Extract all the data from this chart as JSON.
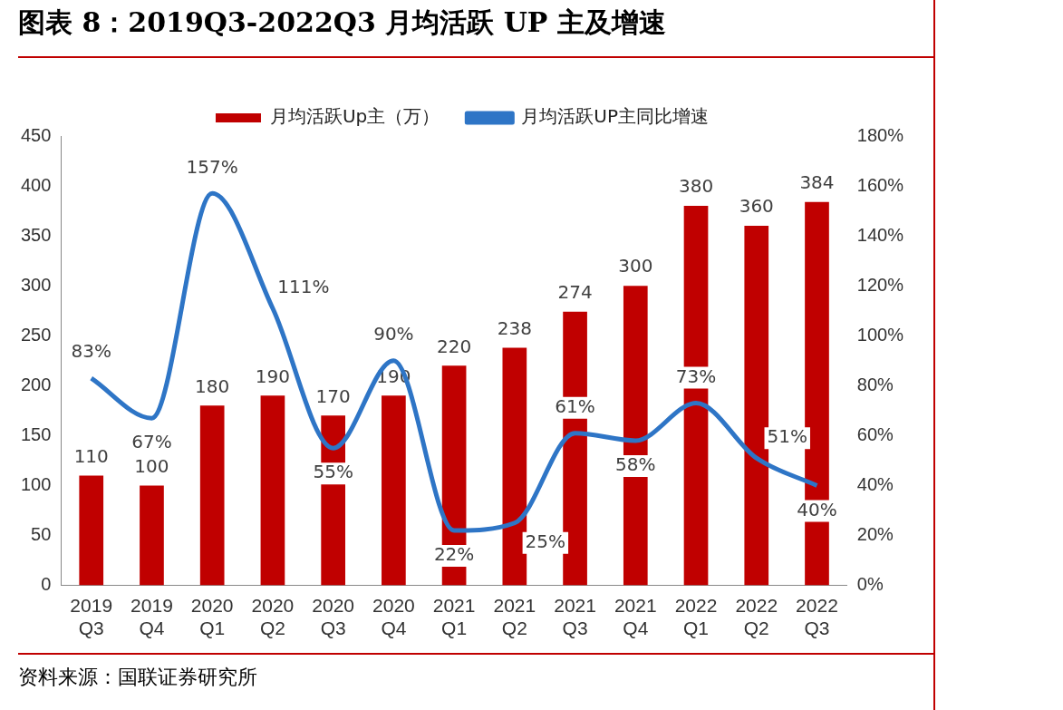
{
  "chart_data": {
    "type": "bar",
    "title": "图表 8：2019Q3-2022Q3 月均活跃 UP 主及增速",
    "categories": [
      "2019 Q3",
      "2019 Q4",
      "2020 Q1",
      "2020 Q2",
      "2020 Q3",
      "2020 Q4",
      "2021 Q1",
      "2021 Q2",
      "2021 Q3",
      "2021 Q4",
      "2022 Q1",
      "2022 Q2",
      "2022 Q3"
    ],
    "series": [
      {
        "name": "月均活跃Up主（万）",
        "color": "#c00000",
        "values": [
          110,
          100,
          180,
          190,
          170,
          190,
          220,
          238,
          274,
          300,
          380,
          360,
          384
        ],
        "value_labels": [
          "110",
          "100",
          "180",
          "190",
          "170",
          "190",
          "220",
          "238",
          "274",
          "300",
          "380",
          "360",
          "384"
        ]
      },
      {
        "name": "月均活跃UP主同比增速",
        "type": "line",
        "axis": "y2",
        "color": "#2e75c6",
        "values": [
          83,
          67,
          157,
          111,
          55,
          90,
          22,
          25,
          61,
          58,
          73,
          51,
          40
        ],
        "value_labels": [
          "83%",
          "67%",
          "157%",
          "111%",
          "55%",
          "90%",
          "22%",
          "25%",
          "61%",
          "58%",
          "73%",
          "51%",
          "40%"
        ]
      }
    ],
    "ylim": [
      0,
      450
    ],
    "yticks": [
      0,
      50,
      100,
      150,
      200,
      250,
      300,
      350,
      400,
      450
    ],
    "y2lim": [
      0,
      180
    ],
    "y2ticks": [
      {
        "value": 0,
        "label": "0%"
      },
      {
        "value": 20,
        "label": "20%"
      },
      {
        "value": 40,
        "label": "40%"
      },
      {
        "value": 60,
        "label": "60%"
      },
      {
        "value": 80,
        "label": "80%"
      },
      {
        "value": 100,
        "label": "100%"
      },
      {
        "value": 120,
        "label": "120%"
      },
      {
        "value": 140,
        "label": "140%"
      },
      {
        "value": 160,
        "label": "160%"
      },
      {
        "value": 180,
        "label": "180%"
      }
    ],
    "grid": false,
    "legend": "top",
    "marker": "none",
    "annotations": [
      "资料来源：国联证券研究所"
    ]
  }
}
